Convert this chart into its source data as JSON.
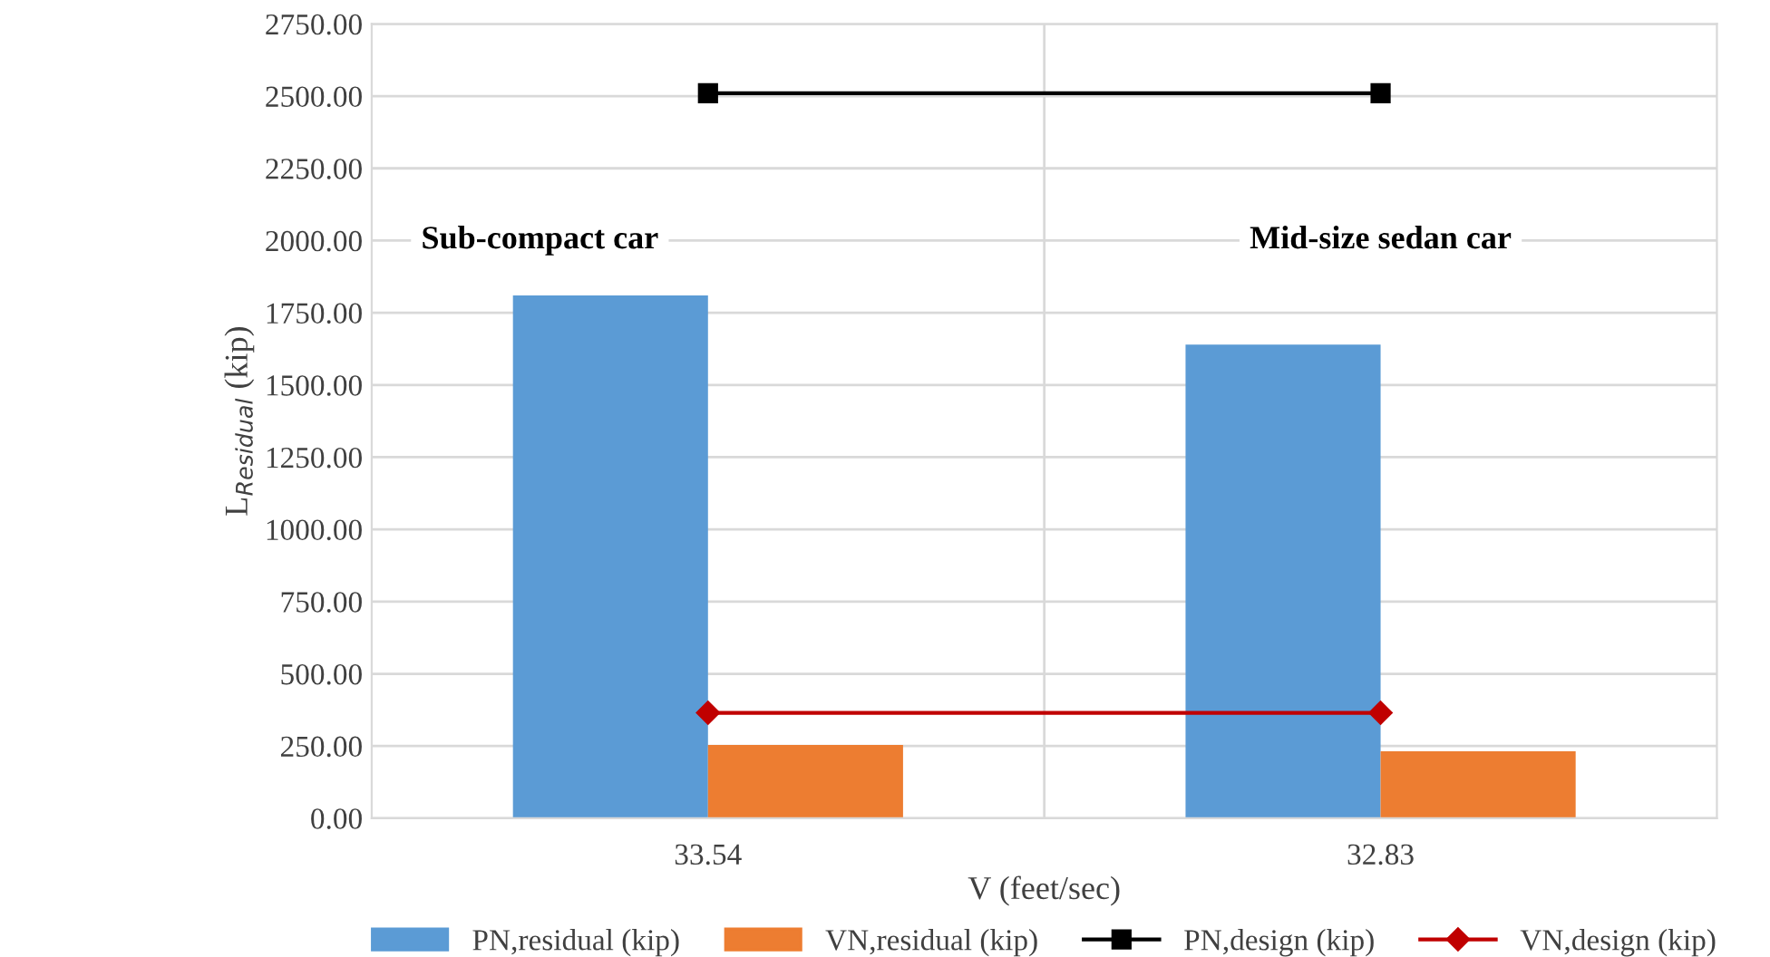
{
  "chart_data": {
    "type": "bar",
    "xlabel": "V (feet/sec)",
    "ylabel": "L$_{Residual}$ (kip)",
    "categories": [
      "33.54",
      "32.83"
    ],
    "series": [
      {
        "name": "PN,residual (kip)",
        "color": "#5b9bd5",
        "values": [
          1810,
          1640
        ]
      },
      {
        "name": "VN,residual (kip)",
        "color": "#ed7d31",
        "values": [
          254,
          232
        ]
      },
      {
        "name": "PN,design (kip)",
        "color": "#000000",
        "type": "line",
        "marker": "square",
        "values": [
          2510,
          2510
        ]
      },
      {
        "name": "VN,design (kip)",
        "color": "#c00000",
        "type": "line",
        "marker": "diamond",
        "values": [
          365,
          365
        ]
      }
    ],
    "ylim": [
      0,
      2750
    ],
    "yticks": [
      {
        "value": 0,
        "label": "0.00"
      },
      {
        "value": 250,
        "label": "250.00"
      },
      {
        "value": 500,
        "label": "500.00"
      },
      {
        "value": 750,
        "label": "750.00"
      },
      {
        "value": 1000,
        "label": "1000.00"
      },
      {
        "value": 1250,
        "label": "1250.00"
      },
      {
        "value": 1500,
        "label": "1500.00"
      },
      {
        "value": 1750,
        "label": "1750.00"
      },
      {
        "value": 2000,
        "label": "2000.00"
      },
      {
        "value": 2250,
        "label": "2250.00"
      },
      {
        "value": 2500,
        "label": "2500.00"
      },
      {
        "value": 2750,
        "label": "2750.00"
      }
    ],
    "annotations": [
      "Sub-compact car",
      "Mid-size sedan car"
    ],
    "grid": true,
    "legend": "bottom"
  }
}
